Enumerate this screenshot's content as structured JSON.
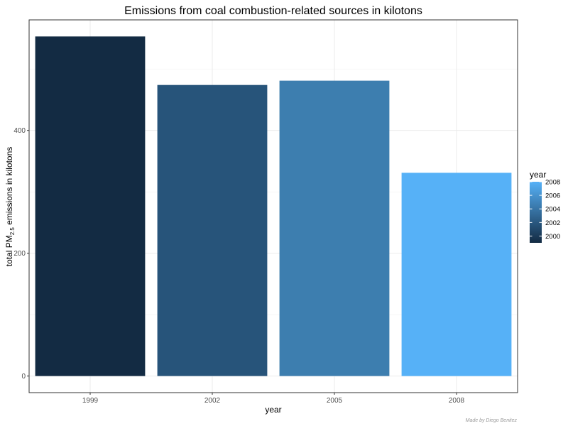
{
  "chart_data": {
    "type": "bar",
    "title": "Emissions from coal combustion-related sources in kilotons",
    "xlabel": "year",
    "ylabel": {
      "prefix": "total PM",
      "subscript": "2.5",
      "suffix": " emissions in kilotons"
    },
    "categories": [
      "1999",
      "2002",
      "2005",
      "2008"
    ],
    "values": [
      553,
      474,
      481,
      331
    ],
    "bar_colors": [
      "#132B43",
      "#27547A",
      "#3D7EAF",
      "#56B1F7"
    ],
    "ylim": [
      -27,
      580
    ],
    "yticks": [
      0,
      200,
      400
    ],
    "grid": true,
    "legend": {
      "title": "year",
      "placement": "right",
      "range": [
        1999,
        2008
      ],
      "labels": [
        "2000",
        "2002",
        "2004",
        "2006",
        "2008"
      ],
      "gradient": [
        "#132B43",
        "#56B1F7"
      ]
    }
  },
  "caption": "Made by Diego Benitez"
}
